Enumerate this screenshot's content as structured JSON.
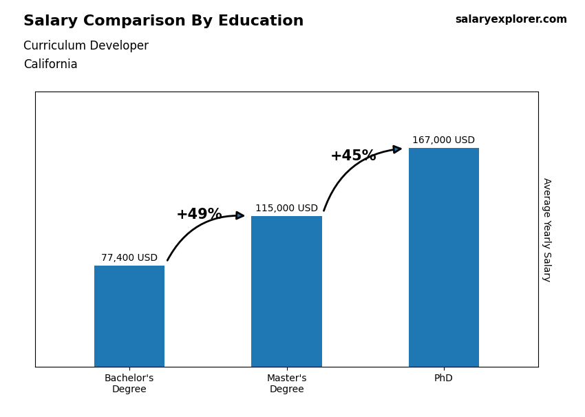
{
  "chart_data": {
    "type": "bar",
    "title": "Salary Comparison By Education",
    "subtitle": [
      "Curriculum Developer",
      "California"
    ],
    "categories": [
      "Bachelor's\nDegree",
      "Master's\nDegree",
      "PhD"
    ],
    "values": [
      77400,
      115000,
      167000
    ],
    "value_labels": [
      "77,400 USD",
      "115,000 USD",
      "167,000 USD"
    ],
    "data_labels": true,
    "ylabel": "Average Yearly Salary",
    "ylim": [
      0,
      210000
    ],
    "yticks": [],
    "tick_labels": "x",
    "grid": false,
    "annotations": [
      {
        "text": "+49%",
        "from": "Bachelor's\nDegree",
        "to": "Master's\nDegree"
      },
      {
        "text": "+45%",
        "from": "Master's\nDegree",
        "to": "PhD"
      },
      {
        "text": "salary"
      },
      {
        "text": "explorer"
      },
      {
        "text": ".com"
      }
    ]
  }
}
